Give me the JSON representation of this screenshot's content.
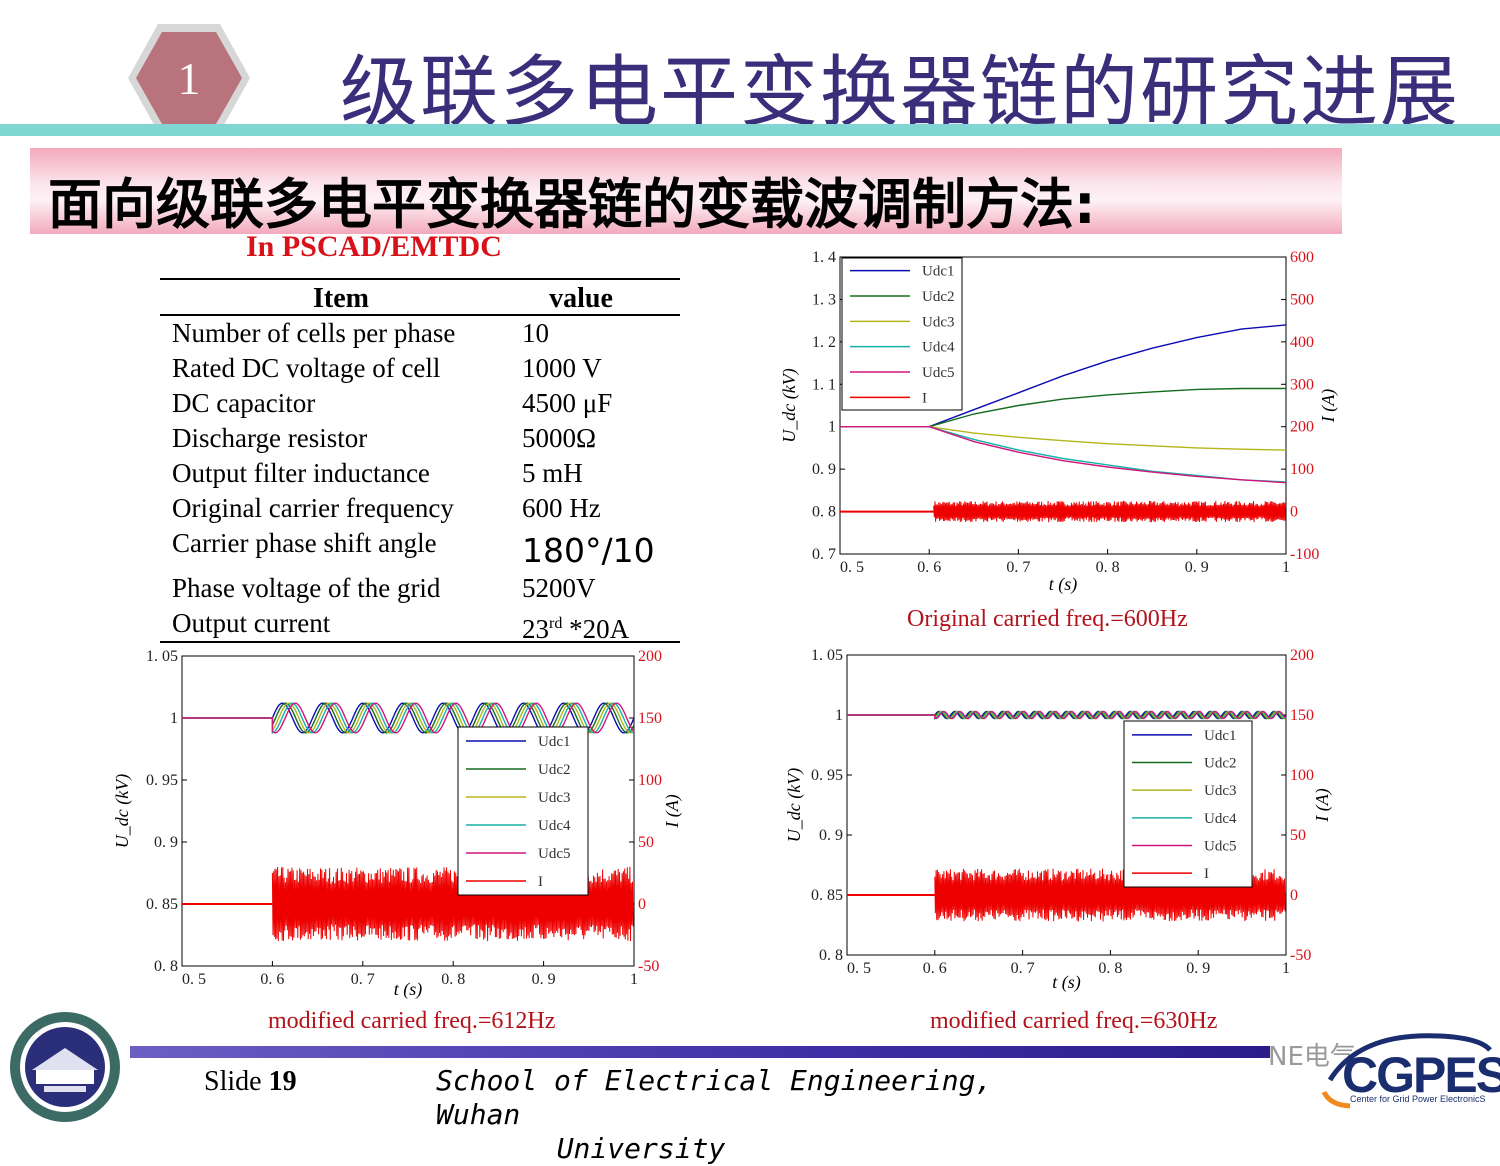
{
  "header": {
    "slide_badge": "1",
    "title": "级联多电平变换器链的研究进展",
    "subtitle": "面向级联多电平变换器链的变载波调制方法:",
    "simulation_label": "In PSCAD/EMTDC"
  },
  "colors": {
    "title": "#3a2d7a",
    "badge": "#b9737d",
    "accent_red": "#d9121a",
    "cyan_bar": "#7fd6d3",
    "pink_banner": "#f3a9bd"
  },
  "table": {
    "headers": [
      "Item",
      "value"
    ],
    "rows": [
      {
        "item": "Number of cells per phase",
        "value": "10"
      },
      {
        "item": "Rated DC voltage of cell",
        "value": "1000 V"
      },
      {
        "item": "DC capacitor",
        "value": "4500 μF"
      },
      {
        "item": "Discharge resistor",
        "value": "5000Ω"
      },
      {
        "item": "Output filter inductance",
        "value": "5 mH"
      },
      {
        "item": "Original carrier frequency",
        "value": "600 Hz"
      },
      {
        "item": "Carrier phase shift angle",
        "value": "180°/10"
      },
      {
        "item": "Phase voltage of the grid",
        "value": "5200V"
      },
      {
        "item": "Output current",
        "value_main": "23",
        "value_sup": "rd",
        "value_tail": " *20A"
      }
    ]
  },
  "captions": {
    "chart1": "Original carried freq.=600Hz",
    "chart2": "modified carried freq.=612Hz",
    "chart3": "modified carried freq.=630Hz"
  },
  "chart_data": [
    {
      "type": "line",
      "x_tick_labels": [
        "0. 5",
        "0. 6",
        "0. 7",
        "0. 8",
        "0. 9",
        "1"
      ],
      "xlim": [
        0.5,
        1.0
      ],
      "ylim": [
        0.7,
        1.4
      ],
      "y_tick_labels": [
        "0. 7",
        "0. 8",
        "0. 9",
        "1",
        "1. 1",
        "1. 2",
        "1. 3",
        "1. 4"
      ],
      "ylim_right": [
        -100,
        600
      ],
      "y2_tick_labels": [
        "-100",
        "0",
        "100",
        "200",
        "300",
        "400",
        "500",
        "600"
      ],
      "xlabel": "t (s)",
      "ylabel": "U_dc (kV)",
      "ylabel_right": "I (A)",
      "legend": [
        "Udc1",
        "Udc2",
        "Udc3",
        "Udc4",
        "Udc5",
        "I"
      ],
      "legend_position": "top-left",
      "series": [
        {
          "name": "Udc1",
          "color": "#0b0bb5",
          "x": [
            0.5,
            0.6,
            0.65,
            0.7,
            0.75,
            0.8,
            0.85,
            0.9,
            0.95,
            1.0
          ],
          "y": [
            1.0,
            1.0,
            1.04,
            1.08,
            1.12,
            1.155,
            1.185,
            1.21,
            1.23,
            1.24
          ]
        },
        {
          "name": "Udc2",
          "color": "#136b1c",
          "x": [
            0.5,
            0.6,
            0.65,
            0.7,
            0.75,
            0.8,
            0.85,
            0.9,
            0.95,
            1.0
          ],
          "y": [
            1.0,
            1.0,
            1.03,
            1.05,
            1.065,
            1.075,
            1.082,
            1.088,
            1.09,
            1.09
          ]
        },
        {
          "name": "Udc3",
          "color": "#b5b51a",
          "x": [
            0.5,
            0.6,
            0.65,
            0.7,
            0.75,
            0.8,
            0.85,
            0.9,
            0.95,
            1.0
          ],
          "y": [
            1.0,
            1.0,
            0.985,
            0.975,
            0.967,
            0.96,
            0.955,
            0.95,
            0.947,
            0.945
          ]
        },
        {
          "name": "Udc4",
          "color": "#14b3a8",
          "x": [
            0.5,
            0.6,
            0.65,
            0.7,
            0.75,
            0.8,
            0.85,
            0.9,
            0.95,
            1.0
          ],
          "y": [
            1.0,
            1.0,
            0.97,
            0.945,
            0.925,
            0.91,
            0.895,
            0.885,
            0.875,
            0.87
          ]
        },
        {
          "name": "Udc5",
          "color": "#d4147a",
          "x": [
            0.5,
            0.6,
            0.65,
            0.7,
            0.75,
            0.8,
            0.85,
            0.9,
            0.95,
            1.0
          ],
          "y": [
            1.0,
            1.0,
            0.965,
            0.94,
            0.92,
            0.905,
            0.893,
            0.883,
            0.875,
            0.868
          ]
        },
        {
          "name": "I",
          "color": "#ee0000",
          "axis": "right",
          "x": [
            0.5,
            0.6,
            0.605,
            1.0
          ],
          "y": [
            0,
            0,
            0,
            0
          ],
          "band_after": 0.605,
          "band_amplitude": 25
        }
      ]
    },
    {
      "type": "line",
      "x_tick_labels": [
        "0. 5",
        "0. 6",
        "0. 7",
        "0. 8",
        "0. 9",
        "1"
      ],
      "xlim": [
        0.5,
        1.0
      ],
      "ylim": [
        0.8,
        1.05
      ],
      "y_tick_labels": [
        "0. 8",
        "0. 85",
        "0. 9",
        "0. 95",
        "1",
        "1. 05"
      ],
      "ylim_right": [
        -50,
        200
      ],
      "y2_tick_labels": [
        "-50",
        "0",
        "50",
        "100",
        "150",
        "200"
      ],
      "xlabel": "t (s)",
      "ylabel": "U_dc (kV)",
      "ylabel_right": "I (A)",
      "legend": [
        "Udc1",
        "Udc2",
        "Udc3",
        "Udc4",
        "Udc5",
        "I"
      ],
      "legend_position": "right",
      "series": [
        {
          "name": "Udc1",
          "color": "#0b0bb5",
          "x": [
            0.5,
            0.6,
            1.0
          ],
          "y": [
            1.0,
            1.0,
            1.0
          ],
          "oscillation_after": 0.6,
          "oscillation_amplitude": 0.012
        },
        {
          "name": "Udc2",
          "color": "#136b1c",
          "x": [
            0.5,
            0.6,
            1.0
          ],
          "y": [
            1.0,
            1.0,
            1.0
          ],
          "oscillation_after": 0.6,
          "oscillation_amplitude": 0.012
        },
        {
          "name": "Udc3",
          "color": "#b5b51a",
          "x": [
            0.5,
            0.6,
            1.0
          ],
          "y": [
            1.0,
            1.0,
            1.0
          ],
          "oscillation_after": 0.6,
          "oscillation_amplitude": 0.012
        },
        {
          "name": "Udc4",
          "color": "#14b3a8",
          "x": [
            0.5,
            0.6,
            1.0
          ],
          "y": [
            1.0,
            1.0,
            1.0
          ],
          "oscillation_after": 0.6,
          "oscillation_amplitude": 0.012
        },
        {
          "name": "Udc5",
          "color": "#d4147a",
          "x": [
            0.5,
            0.6,
            1.0
          ],
          "y": [
            1.0,
            1.0,
            1.0
          ],
          "oscillation_after": 0.6,
          "oscillation_amplitude": 0.012
        },
        {
          "name": "I",
          "color": "#ee0000",
          "axis": "right",
          "x": [
            0.5,
            0.6,
            1.0
          ],
          "y": [
            0,
            0,
            0
          ],
          "band_after": 0.6,
          "band_amplitude": 30
        }
      ]
    },
    {
      "type": "line",
      "x_tick_labels": [
        "0. 5",
        "0. 6",
        "0. 7",
        "0. 8",
        "0. 9",
        "1"
      ],
      "xlim": [
        0.5,
        1.0
      ],
      "ylim": [
        0.8,
        1.05
      ],
      "y_tick_labels": [
        "0. 8",
        "0. 85",
        "0. 9",
        "0. 95",
        "1",
        "1. 05"
      ],
      "ylim_right": [
        -50,
        200
      ],
      "y2_tick_labels": [
        "-50",
        "0",
        "50",
        "100",
        "150",
        "200"
      ],
      "xlabel": "t (s)",
      "ylabel": "U_dc (kV)",
      "ylabel_right": "I (A)",
      "legend": [
        "Udc1",
        "Udc2",
        "Udc3",
        "Udc4",
        "Udc5",
        "I"
      ],
      "legend_position": "right",
      "series": [
        {
          "name": "Udc1",
          "color": "#0b0bb5",
          "x": [
            0.5,
            0.6,
            1.0
          ],
          "y": [
            1.0,
            1.0,
            1.0
          ],
          "oscillation_after": 0.6,
          "oscillation_amplitude": 0.003
        },
        {
          "name": "Udc2",
          "color": "#136b1c",
          "x": [
            0.5,
            0.6,
            1.0
          ],
          "y": [
            1.0,
            1.0,
            1.0
          ],
          "oscillation_after": 0.6,
          "oscillation_amplitude": 0.003
        },
        {
          "name": "Udc3",
          "color": "#b5b51a",
          "x": [
            0.5,
            0.6,
            1.0
          ],
          "y": [
            1.0,
            1.0,
            1.0
          ],
          "oscillation_after": 0.6,
          "oscillation_amplitude": 0.003
        },
        {
          "name": "Udc4",
          "color": "#14b3a8",
          "x": [
            0.5,
            0.6,
            1.0
          ],
          "y": [
            1.0,
            1.0,
            1.0
          ],
          "oscillation_after": 0.6,
          "oscillation_amplitude": 0.003
        },
        {
          "name": "Udc5",
          "color": "#d4147a",
          "x": [
            0.5,
            0.6,
            1.0
          ],
          "y": [
            1.0,
            1.0,
            1.0
          ],
          "oscillation_after": 0.6,
          "oscillation_amplitude": 0.003
        },
        {
          "name": "I",
          "color": "#ee0000",
          "axis": "right",
          "x": [
            0.5,
            0.6,
            1.0
          ],
          "y": [
            0,
            0,
            0
          ],
          "band_after": 0.6,
          "band_amplitude": 22
        }
      ]
    }
  ],
  "footer": {
    "slide_label": "Slide ",
    "slide_number": "19",
    "school_line1": "School of Electrical Engineering, Wuhan",
    "school_line2": "University",
    "wechat_label": "NE电气",
    "org_logo_text": "CGPES",
    "org_name": "Center for Grid Power ElectronicS"
  }
}
